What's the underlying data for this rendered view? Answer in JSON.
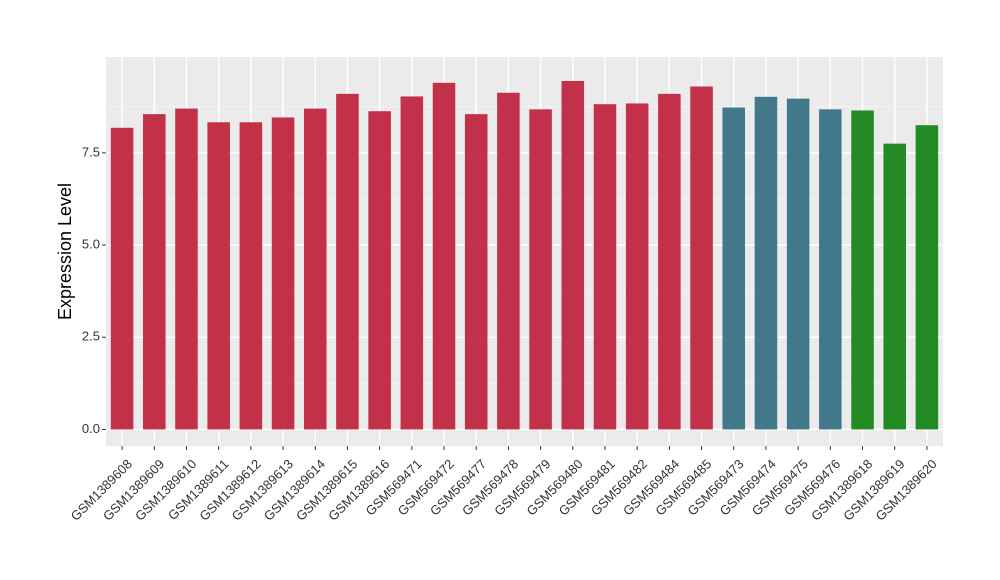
{
  "chart_data": {
    "type": "bar",
    "ylabel": "Expression Level",
    "ylim": [
      -0.45,
      10.1
    ],
    "yticks": [
      0.0,
      2.5,
      5.0,
      7.5
    ],
    "ytick_labels": [
      "0.0",
      "2.5",
      "5.0",
      "7.5"
    ],
    "grid": true,
    "legend": "none",
    "categories": [
      "GSM1389608",
      "GSM1389609",
      "GSM1389610",
      "GSM1389611",
      "GSM1389612",
      "GSM1389613",
      "GSM1389614",
      "GSM1389615",
      "GSM1389616",
      "GSM569471",
      "GSM569472",
      "GSM569477",
      "GSM569478",
      "GSM569479",
      "GSM569480",
      "GSM569481",
      "GSM569482",
      "GSM569484",
      "GSM569485",
      "GSM569473",
      "GSM569474",
      "GSM569475",
      "GSM569476",
      "GSM1389618",
      "GSM1389619",
      "GSM1389620"
    ],
    "values": [
      8.18,
      8.55,
      8.7,
      8.33,
      8.33,
      8.46,
      8.7,
      9.1,
      8.63,
      9.03,
      9.4,
      8.55,
      9.13,
      8.68,
      9.45,
      8.82,
      8.84,
      9.1,
      9.3,
      8.73,
      9.02,
      8.97,
      8.68,
      8.65,
      7.75,
      8.25
    ],
    "bar_colors": [
      "#c3304a",
      "#c3304a",
      "#c3304a",
      "#c3304a",
      "#c3304a",
      "#c3304a",
      "#c3304a",
      "#c3304a",
      "#c3304a",
      "#c3304a",
      "#c3304a",
      "#c3304a",
      "#c3304a",
      "#c3304a",
      "#c3304a",
      "#c3304a",
      "#c3304a",
      "#c3304a",
      "#c3304a",
      "#41788a",
      "#41788a",
      "#41788a",
      "#41788a",
      "#238b23",
      "#238b23",
      "#238b23"
    ],
    "colors": {
      "panel_background": "#ebebeb",
      "grid_major": "#ffffff",
      "grid_minor": "#f5f5f5",
      "axis_ticks": "#333333"
    }
  }
}
